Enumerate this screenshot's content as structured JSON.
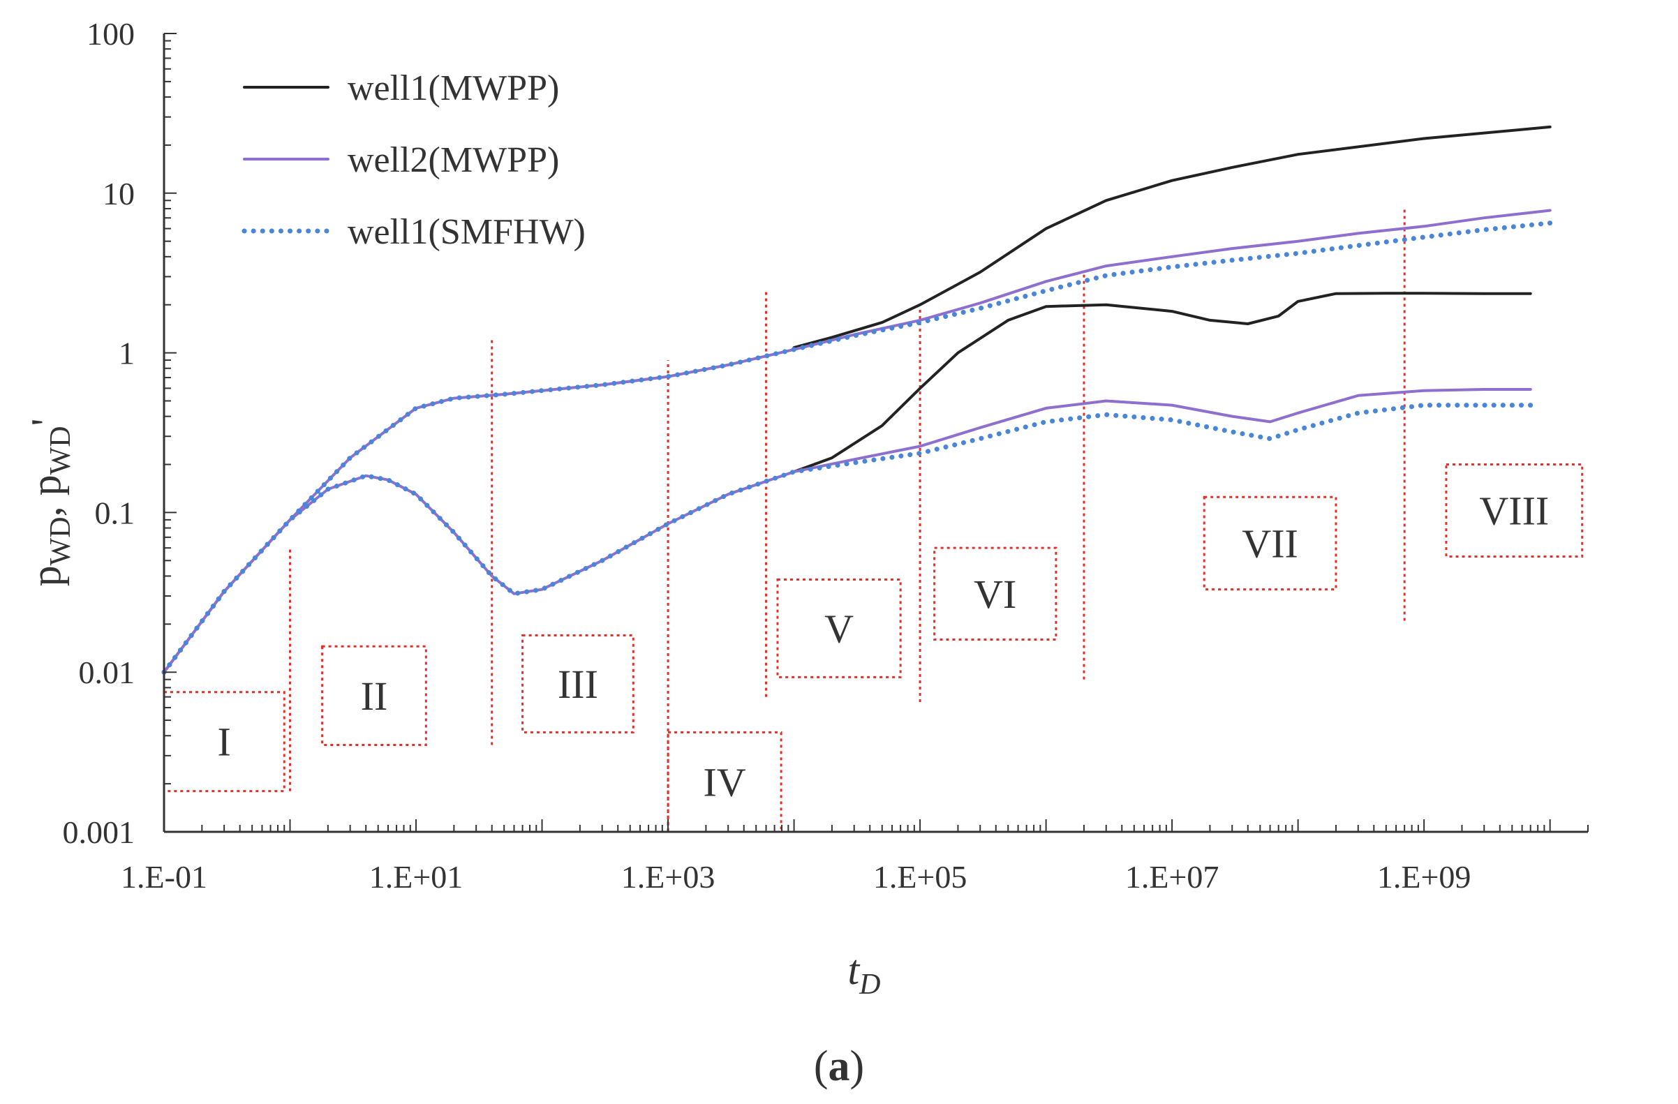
{
  "chart_data": {
    "type": "line",
    "x_scale": "log",
    "y_scale": "log",
    "xlabel_main": "t",
    "xlabel_sub": "D",
    "ylabel_parts": [
      "p",
      "WD",
      ", p",
      "WD",
      "'"
    ],
    "xlim": [
      0.1,
      20000000000
    ],
    "ylim": [
      0.001,
      100
    ],
    "x_ticks": [
      {
        "value": 0.1,
        "label": "1.E-01"
      },
      {
        "value": 10,
        "label": "1.E+01"
      },
      {
        "value": 1000,
        "label": "1.E+03"
      },
      {
        "value": 100000,
        "label": "1.E+05"
      },
      {
        "value": 10000000,
        "label": "1.E+07"
      },
      {
        "value": 1000000000,
        "label": "1.E+09"
      }
    ],
    "y_ticks": [
      {
        "value": 0.001,
        "label": "0.001"
      },
      {
        "value": 0.01,
        "label": "0.01"
      },
      {
        "value": 0.1,
        "label": "0.1"
      },
      {
        "value": 1,
        "label": "1"
      },
      {
        "value": 10,
        "label": "10"
      },
      {
        "value": 100,
        "label": "100"
      }
    ],
    "caption": "(a)",
    "caption_bold": "a",
    "legend": [
      {
        "label": "well1(MWPP)",
        "color": "#222222",
        "style": "solid"
      },
      {
        "label": "well2(MWPP)",
        "color": "#8e6fd0",
        "style": "solid"
      },
      {
        "label": "well1(SMFHW)",
        "color": "#4a86d8",
        "style": "dotted"
      }
    ],
    "series": [
      {
        "name": "well1(MWPP) pressure",
        "color": "#222222",
        "style": "solid",
        "x": [
          10000,
          20000,
          50000,
          100000,
          300000,
          1000000,
          3000000,
          10000000,
          30000000,
          100000000,
          1000000000,
          10000000000
        ],
        "y": [
          1.08,
          1.25,
          1.55,
          2.0,
          3.2,
          6.0,
          9.0,
          12.0,
          14.5,
          17.5,
          22.0,
          26.0
        ]
      },
      {
        "name": "well2(MWPP) pressure",
        "color": "#8e6fd0",
        "style": "solid",
        "x": [
          0.1,
          0.3,
          1,
          3,
          10,
          20,
          50,
          100,
          300,
          1000,
          3000,
          10000,
          30000,
          100000,
          300000,
          1000000,
          3000000,
          10000000,
          30000000,
          100000000,
          300000000,
          1000000000,
          3000000000,
          10000000000
        ],
        "y": [
          0.01,
          0.032,
          0.09,
          0.22,
          0.45,
          0.52,
          0.55,
          0.58,
          0.63,
          0.71,
          0.84,
          1.05,
          1.3,
          1.6,
          2.05,
          2.8,
          3.5,
          4.0,
          4.5,
          5.0,
          5.6,
          6.2,
          7.0,
          7.8
        ]
      },
      {
        "name": "well1(SMFHW) pressure",
        "color": "#4a86d8",
        "style": "dotted",
        "x": [
          0.1,
          0.3,
          1,
          3,
          10,
          20,
          50,
          100,
          300,
          1000,
          3000,
          10000,
          30000,
          100000,
          300000,
          1000000,
          3000000,
          10000000,
          30000000,
          100000000,
          300000000,
          1000000000,
          3000000000,
          10000000000
        ],
        "y": [
          0.01,
          0.032,
          0.09,
          0.22,
          0.45,
          0.52,
          0.55,
          0.58,
          0.63,
          0.71,
          0.84,
          1.05,
          1.28,
          1.55,
          1.9,
          2.45,
          3.05,
          3.45,
          3.8,
          4.2,
          4.7,
          5.3,
          5.9,
          6.5
        ]
      },
      {
        "name": "well1(MWPP) derivative",
        "color": "#222222",
        "style": "solid",
        "x": [
          10000,
          20000,
          50000,
          100000,
          200000,
          500000,
          1000000,
          3000000,
          10000000,
          20000000,
          40000000,
          70000000,
          100000000,
          200000000,
          500000000,
          1000000000,
          3000000000,
          7000000000
        ],
        "y": [
          0.18,
          0.22,
          0.35,
          0.6,
          1.0,
          1.6,
          1.95,
          2.0,
          1.82,
          1.6,
          1.52,
          1.7,
          2.1,
          2.35,
          2.36,
          2.36,
          2.35,
          2.35
        ]
      },
      {
        "name": "well2(MWPP) derivative",
        "color": "#8e6fd0",
        "style": "solid",
        "x": [
          0.1,
          0.3,
          1,
          2,
          4,
          6,
          10,
          20,
          40,
          60,
          100,
          300,
          1000,
          3000,
          10000,
          30000,
          100000,
          300000,
          1000000,
          3000000,
          10000000,
          30000000,
          60000000,
          100000000,
          300000000,
          1000000000,
          3000000000,
          7000000000
        ],
        "y": [
          0.01,
          0.032,
          0.09,
          0.14,
          0.17,
          0.16,
          0.13,
          0.075,
          0.04,
          0.031,
          0.033,
          0.05,
          0.085,
          0.13,
          0.18,
          0.215,
          0.26,
          0.34,
          0.45,
          0.5,
          0.47,
          0.4,
          0.37,
          0.42,
          0.54,
          0.58,
          0.59,
          0.59
        ]
      },
      {
        "name": "well1(SMFHW) derivative",
        "color": "#4a86d8",
        "style": "dotted",
        "x": [
          0.1,
          0.3,
          1,
          2,
          4,
          6,
          10,
          20,
          40,
          60,
          100,
          300,
          1000,
          3000,
          10000,
          30000,
          100000,
          300000,
          1000000,
          3000000,
          10000000,
          30000000,
          60000000,
          100000000,
          300000000,
          1000000000,
          3000000000,
          7000000000
        ],
        "y": [
          0.01,
          0.032,
          0.09,
          0.14,
          0.17,
          0.16,
          0.13,
          0.075,
          0.04,
          0.031,
          0.033,
          0.05,
          0.085,
          0.13,
          0.18,
          0.205,
          0.235,
          0.29,
          0.37,
          0.41,
          0.38,
          0.32,
          0.29,
          0.33,
          0.42,
          0.47,
          0.47,
          0.47
        ]
      }
    ],
    "region_boundaries": [
      {
        "x": 1,
        "y_range": [
          0.0018,
          0.06
        ]
      },
      {
        "x": 40,
        "y_range": [
          0.0035,
          1.2
        ]
      },
      {
        "x": 1000,
        "y_range": [
          0.001,
          0.9
        ]
      },
      {
        "x": 6000,
        "y_range": [
          0.007,
          2.5
        ]
      },
      {
        "x": 100000,
        "y_range": [
          0.0065,
          1.9
        ]
      },
      {
        "x": 2000000,
        "y_range": [
          0.009,
          3.2
        ]
      },
      {
        "x": 700000000,
        "y_range": [
          0.021,
          8.0
        ]
      }
    ],
    "regions": [
      {
        "label": "I",
        "x_range": [
          0.1,
          0.9
        ],
        "y_range": [
          0.0018,
          0.0075
        ]
      },
      {
        "label": "II",
        "x_range": [
          1.8,
          12
        ],
        "y_range": [
          0.0035,
          0.0145
        ]
      },
      {
        "label": "III",
        "x_range": [
          70,
          530
        ],
        "y_range": [
          0.0042,
          0.017
        ]
      },
      {
        "label": "IV",
        "x_range": [
          1000,
          7900
        ],
        "y_range": [
          0.001,
          0.0042
        ]
      },
      {
        "label": "V",
        "x_range": [
          7400,
          70000
        ],
        "y_range": [
          0.0093,
          0.038
        ]
      },
      {
        "label": "VI",
        "x_range": [
          130000,
          1200000
        ],
        "y_range": [
          0.016,
          0.06
        ]
      },
      {
        "label": "VII",
        "x_range": [
          18000000,
          200000000
        ],
        "y_range": [
          0.033,
          0.125
        ]
      },
      {
        "label": "VIII",
        "x_range": [
          1500000000,
          18000000000
        ],
        "y_range": [
          0.053,
          0.2
        ]
      }
    ]
  }
}
